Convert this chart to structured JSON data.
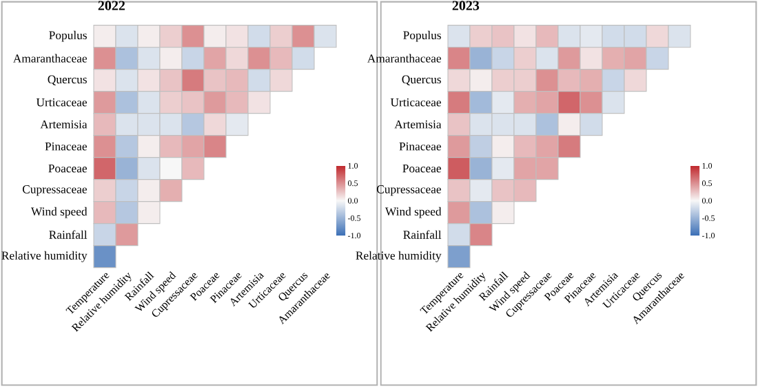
{
  "chart_data": [
    {
      "type": "heatmap",
      "title": "2022",
      "categories": [
        "Temperature",
        "Relative humidity",
        "Rainfall",
        "Wind speed",
        "Cupressaceae",
        "Poaceae",
        "Pinaceae",
        "Artemisia",
        "Urticaceae",
        "Quercus",
        "Amaranthaceae"
      ],
      "y_categories": [
        "Populus",
        "Amaranthaceae",
        "Quercus",
        "Urticaceae",
        "Artemisia",
        "Pinaceae",
        "Poaceae",
        "Cupressaceae",
        "Wind speed",
        "Rainfall",
        "Relative humidity"
      ],
      "cells": [
        [
          0.05,
          -0.15,
          0.05,
          0.2,
          0.5,
          0.05,
          0.1,
          -0.2,
          0.2,
          0.5,
          -0.15
        ],
        [
          0.5,
          -0.4,
          -0.15,
          0.05,
          -0.25,
          0.4,
          0.15,
          0.5,
          0.3,
          -0.2,
          null
        ],
        [
          0.1,
          -0.15,
          0.1,
          0.25,
          0.6,
          0.25,
          0.3,
          -0.2,
          0.15,
          null,
          null
        ],
        [
          0.45,
          -0.4,
          -0.15,
          0.2,
          0.25,
          0.45,
          0.3,
          0.1,
          null,
          null,
          null
        ],
        [
          0.3,
          -0.15,
          -0.15,
          -0.15,
          -0.35,
          0.15,
          -0.1,
          null,
          null,
          null,
          null
        ],
        [
          0.5,
          -0.35,
          0.05,
          0.3,
          0.4,
          0.55,
          null,
          null,
          null,
          null,
          null
        ],
        [
          0.7,
          -0.5,
          -0.15,
          0.0,
          0.3,
          null,
          null,
          null,
          null,
          null,
          null
        ],
        [
          0.2,
          -0.25,
          0.05,
          0.35,
          null,
          null,
          null,
          null,
          null,
          null,
          null
        ],
        [
          0.3,
          -0.35,
          0.05,
          null,
          null,
          null,
          null,
          null,
          null,
          null,
          null
        ],
        [
          -0.25,
          0.45,
          null,
          null,
          null,
          null,
          null,
          null,
          null,
          null,
          null
        ],
        [
          -0.75,
          null,
          null,
          null,
          null,
          null,
          null,
          null,
          null,
          null,
          null
        ]
      ],
      "clim": [
        -1,
        1
      ],
      "cticks": [
        {
          "value": -1,
          "label": "-1.0"
        },
        {
          "value": -0.5,
          "label": "-0.5"
        },
        {
          "value": 0,
          "label": "0.0"
        },
        {
          "value": 0.5,
          "label": "0.5"
        },
        {
          "value": 1,
          "label": "1.0"
        }
      ]
    },
    {
      "type": "heatmap",
      "title": "2023",
      "categories": [
        "Temperature",
        "Relative humidity",
        "Rainfall",
        "Wind speed",
        "Cupressaceae",
        "Poaceae",
        "Pinaceae",
        "Artemisia",
        "Urticaceae",
        "Quercus",
        "Amaranthaceae"
      ],
      "y_categories": [
        "Populus",
        "Amaranthaceae",
        "Quercus",
        "Urticaceae",
        "Artemisia",
        "Pinaceae",
        "Poaceae",
        "Cupressaceae",
        "Wind speed",
        "Rainfall",
        "Relative humidity"
      ],
      "cells": [
        [
          -0.15,
          0.2,
          0.25,
          0.1,
          0.3,
          -0.15,
          -0.1,
          -0.2,
          -0.2,
          0.15,
          -0.15
        ],
        [
          0.55,
          -0.5,
          -0.25,
          0.2,
          -0.15,
          0.45,
          0.1,
          0.35,
          0.4,
          -0.25,
          null
        ],
        [
          0.15,
          0.05,
          0.2,
          0.2,
          0.5,
          0.3,
          0.35,
          -0.25,
          0.15,
          null,
          null
        ],
        [
          0.6,
          -0.45,
          -0.1,
          0.35,
          0.4,
          0.7,
          0.5,
          -0.15,
          null,
          null,
          null
        ],
        [
          0.25,
          -0.15,
          -0.15,
          -0.15,
          -0.4,
          0.05,
          -0.2,
          null,
          null,
          null,
          null
        ],
        [
          0.45,
          -0.3,
          0.05,
          0.3,
          0.4,
          0.6,
          null,
          null,
          null,
          null,
          null
        ],
        [
          0.75,
          -0.5,
          -0.1,
          0.4,
          0.4,
          null,
          null,
          null,
          null,
          null,
          null
        ],
        [
          0.25,
          -0.1,
          0.25,
          0.3,
          null,
          null,
          null,
          null,
          null,
          null,
          null
        ],
        [
          0.45,
          -0.4,
          0.05,
          null,
          null,
          null,
          null,
          null,
          null,
          null,
          null
        ],
        [
          -0.2,
          0.55,
          null,
          null,
          null,
          null,
          null,
          null,
          null,
          null,
          null
        ],
        [
          -0.65,
          null,
          null,
          null,
          null,
          null,
          null,
          null,
          null,
          null,
          null
        ]
      ],
      "clim": [
        -1,
        1
      ],
      "cticks": [
        {
          "value": -1,
          "label": "-1.0"
        },
        {
          "value": -0.5,
          "label": "-0.5"
        },
        {
          "value": 0,
          "label": "0.0"
        },
        {
          "value": 0.5,
          "label": "0.5"
        },
        {
          "value": 1,
          "label": "1.0"
        }
      ]
    }
  ]
}
